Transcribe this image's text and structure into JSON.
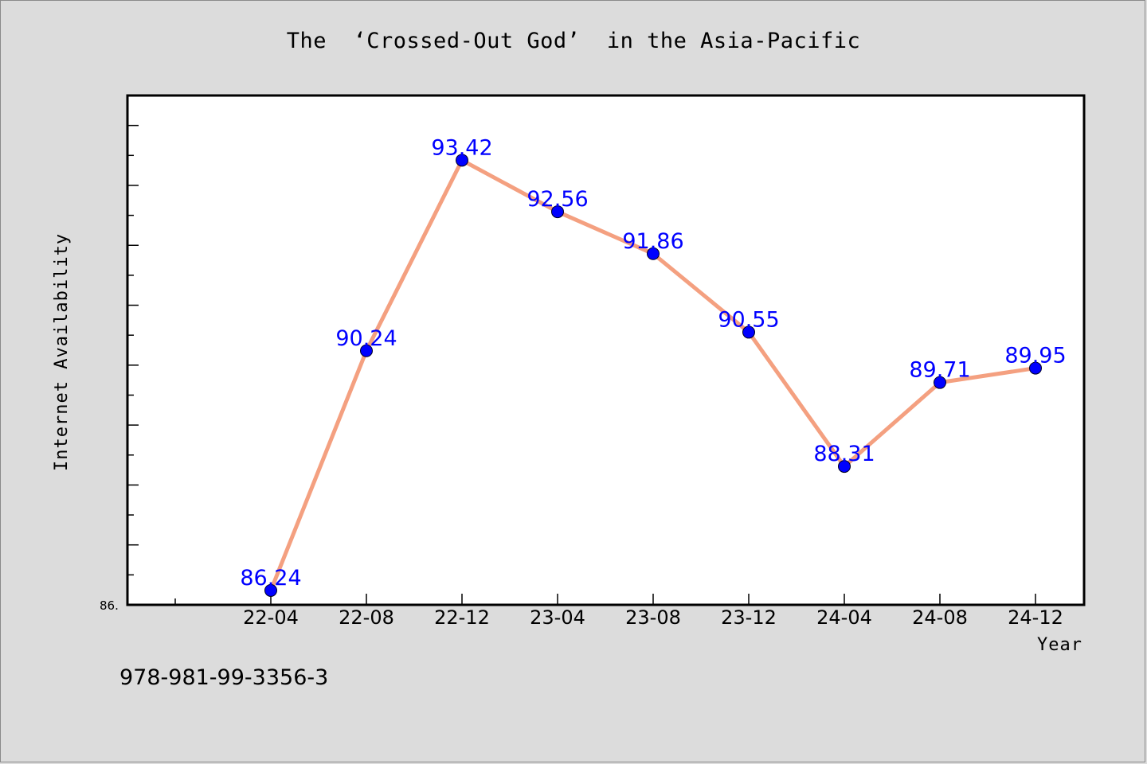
{
  "title": "The  ‘Crossed-Out God’  in the Asia-Pacific",
  "footnote": "978-981-99-3356-3",
  "chart_data": {
    "type": "line",
    "title": "The  ‘Crossed-Out God’  in the Asia-Pacific",
    "xlabel": "Year",
    "ylabel": "Internet Availability",
    "categories": [
      "22-04",
      "22-08",
      "22-12",
      "23-04",
      "23-08",
      "23-12",
      "24-04",
      "24-08",
      "24-12"
    ],
    "values": [
      86.24,
      90.24,
      93.42,
      92.56,
      91.86,
      90.55,
      88.31,
      89.71,
      89.95
    ],
    "data_labels": [
      "86.24",
      "90.24",
      "93.42",
      "92.56",
      "91.86",
      "90.55",
      "88.31",
      "89.71",
      "89.95"
    ],
    "ylim": [
      86.0,
      94.5
    ],
    "y_tick_label_min": "86.",
    "grid": false,
    "legend": "none",
    "colors": {
      "line": "#f4a080",
      "marker": "#0000ff",
      "data_label": "#0000ff",
      "background": "#dcdcdc",
      "plot_background": "#ffffff"
    }
  }
}
